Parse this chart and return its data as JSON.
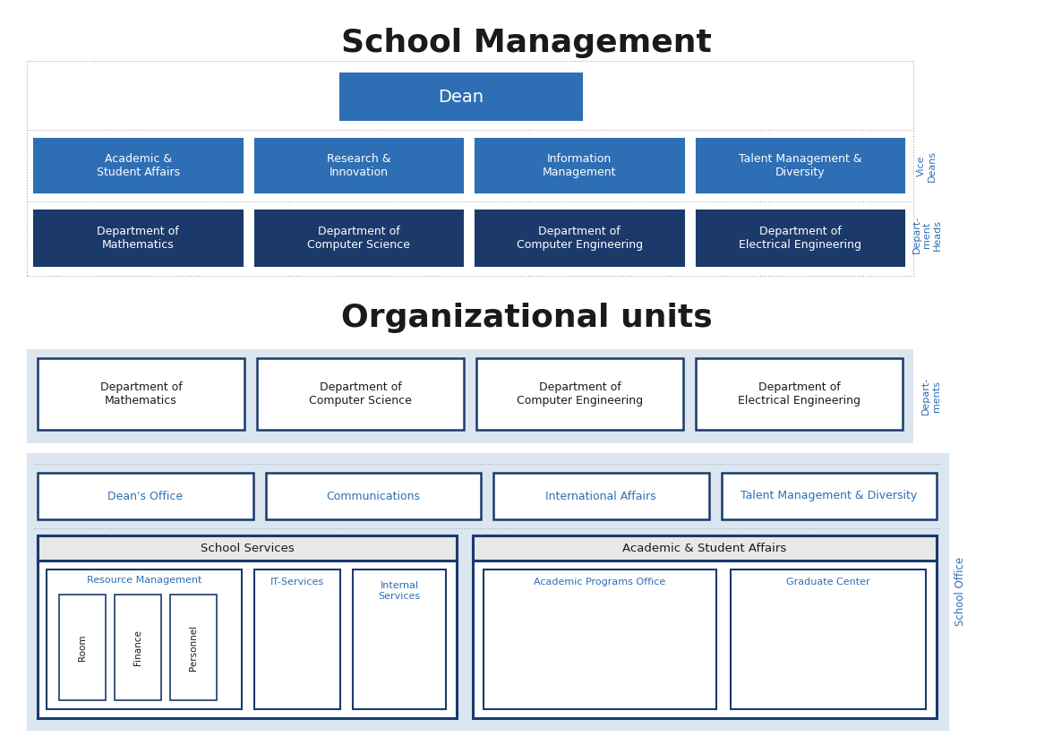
{
  "title_school_mgmt": "School Management",
  "title_org_units": "Organizational units",
  "dark_blue": "#1b3a6b",
  "medium_blue": "#2e6eb4",
  "light_blue_bg": "#dce6f1",
  "white": "#ffffff",
  "gray_bg": "#e8e8e8",
  "text_dark": "#1a1a1a",
  "label_blue": "#2e6eb4",
  "dot_gray": "#aaaaaa",
  "dean_box": "Dean",
  "vice_deans": [
    "Academic &\nStudent Affairs",
    "Research &\nInnovation",
    "Information\nManagement",
    "Talent Management &\nDiversity"
  ],
  "dept_heads": [
    "Department of\nMathematics",
    "Department of\nComputer Science",
    "Department of\nComputer Engineering",
    "Department of\nElectrical Engineering"
  ],
  "org_departments": [
    "Department of\nMathematics",
    "Department of\nComputer Science",
    "Department of\nComputer Engineering",
    "Department of\nElectrical Engineering"
  ],
  "school_office_top": [
    "Dean's Office",
    "Communications",
    "International Affairs",
    "Talent Management & Diversity"
  ],
  "school_services_title": "School Services",
  "asa_title": "Academic & Student Affairs",
  "resource_mgmt": "Resource Management",
  "it_services": "IT-Services",
  "internal_services": "Internal\nServices",
  "sub_resource": [
    "Room",
    "Finance",
    "Personnel"
  ],
  "academic_programs": "Academic Programs Office",
  "graduate_center": "Graduate Center",
  "side_label_vice": "Vice\nDeans",
  "side_label_dept_heads": "Depart-\nment\nHeads",
  "side_label_departments": "Depart-\nments",
  "side_label_school_office": "School Office"
}
